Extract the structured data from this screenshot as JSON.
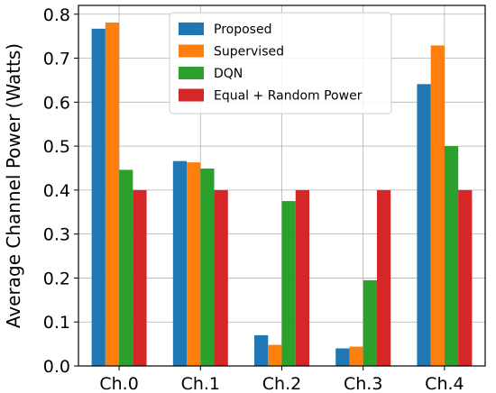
{
  "chart_data": {
    "type": "bar",
    "categories": [
      "Ch.0",
      "Ch.1",
      "Ch.2",
      "Ch.3",
      "Ch.4"
    ],
    "series": [
      {
        "name": "Proposed",
        "color": "#1f77b4",
        "values": [
          0.767,
          0.466,
          0.07,
          0.04,
          0.641
        ]
      },
      {
        "name": "Supervised",
        "color": "#ff7f0e",
        "values": [
          0.781,
          0.463,
          0.048,
          0.044,
          0.729
        ]
      },
      {
        "name": "DQN",
        "color": "#2ca02c",
        "values": [
          0.446,
          0.449,
          0.375,
          0.195,
          0.5
        ]
      },
      {
        "name": "Equal + Random Power",
        "color": "#d62728",
        "values": [
          0.4,
          0.4,
          0.4,
          0.4,
          0.4
        ]
      }
    ],
    "title": "",
    "xlabel": "",
    "ylabel": "Average Channel Power (Watts)",
    "ylim": [
      0,
      0.82
    ],
    "yticks": [
      0.0,
      0.1,
      0.2,
      0.3,
      0.4,
      0.5,
      0.6,
      0.7,
      0.8
    ],
    "ytick_labels": [
      "0.0",
      "0.1",
      "0.2",
      "0.3",
      "0.4",
      "0.5",
      "0.6",
      "0.7",
      "0.8"
    ],
    "grid": true,
    "legend_position": "top-center"
  }
}
